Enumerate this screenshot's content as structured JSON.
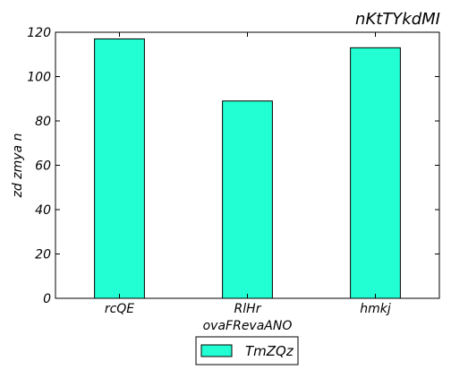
{
  "chart_data": {
    "type": "bar",
    "title": "nKtTYkdMI",
    "xlabel": "ovaFRevaANO",
    "ylabel": "zd zmya n",
    "categories": [
      "rcQE",
      "RlHr",
      "hmkj"
    ],
    "series": [
      {
        "name": "TmZQz",
        "values": [
          117,
          89,
          113
        ],
        "color": "#22ffd2"
      }
    ],
    "ylim": [
      0,
      120
    ],
    "yticks": [
      0,
      20,
      40,
      60,
      80,
      100,
      120
    ],
    "grid": false,
    "legend_position": "bottom-center"
  }
}
